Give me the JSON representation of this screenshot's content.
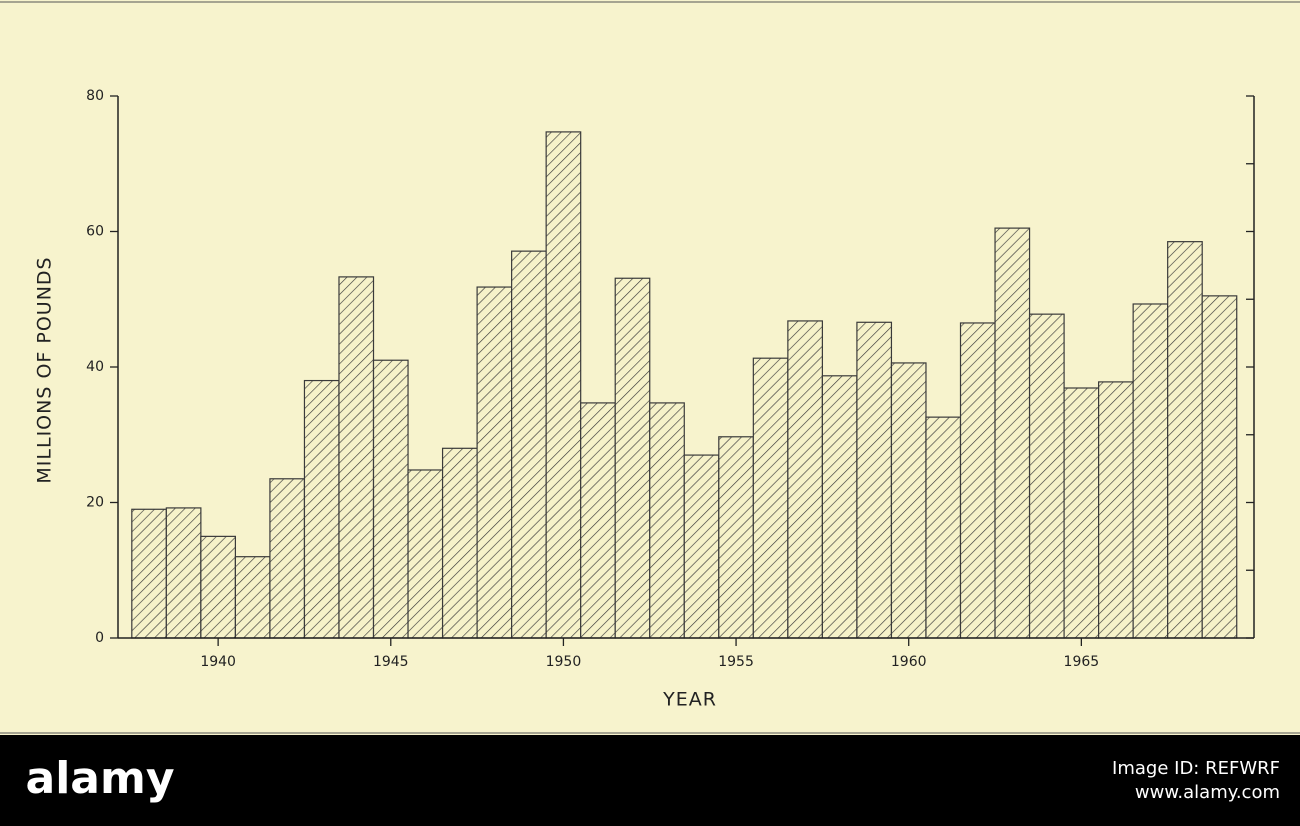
{
  "chart_data": {
    "type": "bar",
    "x_label": "YEAR",
    "y_label": "MILLIONS OF POUNDS",
    "x": [
      1938,
      1939,
      1940,
      1941,
      1942,
      1943,
      1944,
      1945,
      1946,
      1947,
      1948,
      1949,
      1950,
      1951,
      1952,
      1953,
      1954,
      1955,
      1956,
      1957,
      1958,
      1959,
      1960,
      1961,
      1962,
      1963,
      1964,
      1965,
      1966,
      1967,
      1968,
      1969
    ],
    "values": [
      19,
      19.2,
      15,
      12,
      23.5,
      38,
      53.3,
      41,
      24.8,
      28,
      51.8,
      57.1,
      74.7,
      34.7,
      53.1,
      34.7,
      27,
      29.7,
      41.3,
      46.8,
      38.7,
      46.6,
      40.6,
      32.6,
      46.5,
      60.5,
      47.8,
      36.9,
      37.8,
      49.3,
      58.5,
      50.5
    ],
    "xlim": [
      1937.1,
      1970
    ],
    "xticks": [
      1940,
      1945,
      1950,
      1955,
      1960,
      1965
    ],
    "ylim": [
      0,
      80
    ],
    "yticks": [
      0,
      20,
      40,
      60,
      80
    ],
    "y_minor_ticks": [
      10,
      30,
      50,
      70
    ],
    "color": "#3a3a3a",
    "hatch": true,
    "grid": false
  },
  "watermark": {
    "brand": "alamy",
    "image_id": "Image ID: REFWRF",
    "url": "www.alamy.com"
  }
}
